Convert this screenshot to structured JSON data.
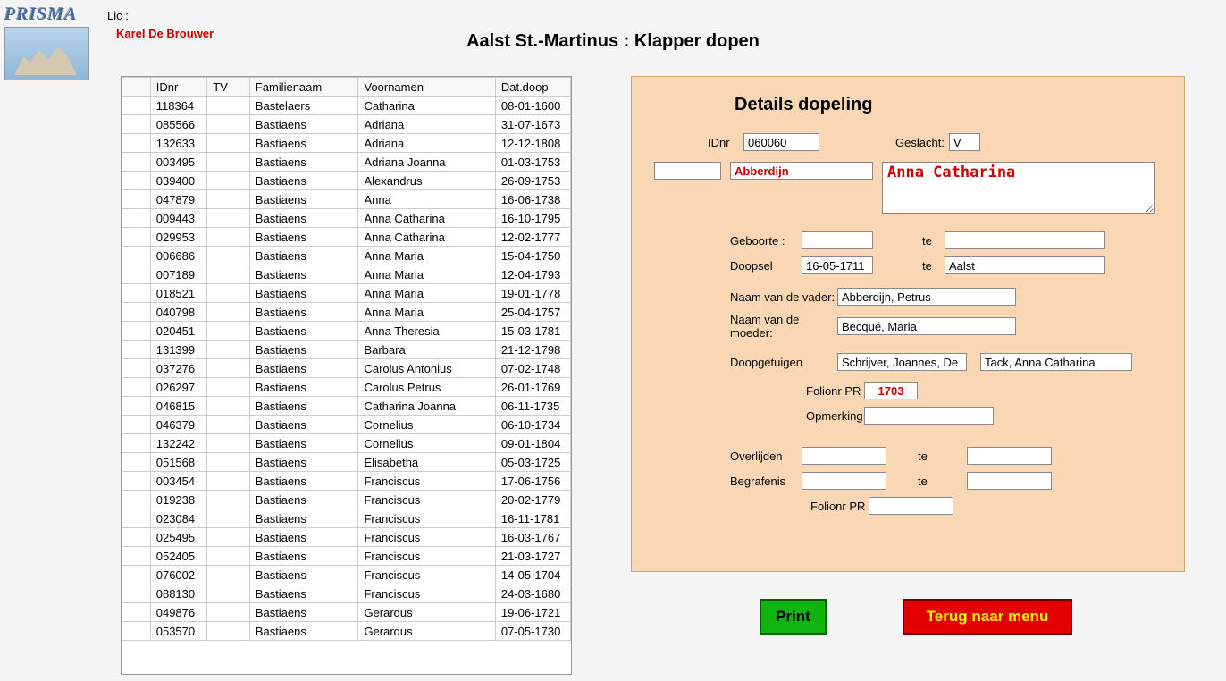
{
  "header": {
    "logo_text": "PRISMA",
    "lic_label": "Lic :",
    "lic_name": "Karel De Brouwer",
    "main_title": "Aalst St.-Martinus : Klapper dopen"
  },
  "table": {
    "columns": [
      "",
      "IDnr",
      "TV",
      "Familienaam",
      "Voornamen",
      "Dat.doop"
    ],
    "rows": [
      [
        "",
        "118364",
        "",
        "Bastelaers",
        "Catharina",
        "08-01-1600"
      ],
      [
        "",
        "085566",
        "",
        "Bastiaens",
        "Adriana",
        "31-07-1673"
      ],
      [
        "",
        "132633",
        "",
        "Bastiaens",
        "Adriana",
        "12-12-1808"
      ],
      [
        "",
        "003495",
        "",
        "Bastiaens",
        "Adriana Joanna",
        "01-03-1753"
      ],
      [
        "",
        "039400",
        "",
        "Bastiaens",
        "Alexandrus",
        "26-09-1753"
      ],
      [
        "",
        "047879",
        "",
        "Bastiaens",
        "Anna",
        "16-06-1738"
      ],
      [
        "",
        "009443",
        "",
        "Bastiaens",
        "Anna Catharina",
        "16-10-1795"
      ],
      [
        "",
        "029953",
        "",
        "Bastiaens",
        "Anna Catharina",
        "12-02-1777"
      ],
      [
        "",
        "006686",
        "",
        "Bastiaens",
        "Anna Maria",
        "15-04-1750"
      ],
      [
        "",
        "007189",
        "",
        "Bastiaens",
        "Anna Maria",
        "12-04-1793"
      ],
      [
        "",
        "018521",
        "",
        "Bastiaens",
        "Anna Maria",
        "19-01-1778"
      ],
      [
        "",
        "040798",
        "",
        "Bastiaens",
        "Anna Maria",
        "25-04-1757"
      ],
      [
        "",
        "020451",
        "",
        "Bastiaens",
        "Anna Theresia",
        "15-03-1781"
      ],
      [
        "",
        "131399",
        "",
        "Bastiaens",
        "Barbara",
        "21-12-1798"
      ],
      [
        "",
        "037276",
        "",
        "Bastiaens",
        "Carolus Antonius",
        "07-02-1748"
      ],
      [
        "",
        "026297",
        "",
        "Bastiaens",
        "Carolus Petrus",
        "26-01-1769"
      ],
      [
        "",
        "046815",
        "",
        "Bastiaens",
        "Catharina Joanna",
        "06-11-1735"
      ],
      [
        "",
        "046379",
        "",
        "Bastiaens",
        "Cornelius",
        "06-10-1734"
      ],
      [
        "",
        "132242",
        "",
        "Bastiaens",
        "Cornelius",
        "09-01-1804"
      ],
      [
        "",
        "051568",
        "",
        "Bastiaens",
        "Elisabetha",
        "05-03-1725"
      ],
      [
        "",
        "003454",
        "",
        "Bastiaens",
        "Franciscus",
        "17-06-1756"
      ],
      [
        "",
        "019238",
        "",
        "Bastiaens",
        "Franciscus",
        "20-02-1779"
      ],
      [
        "",
        "023084",
        "",
        "Bastiaens",
        "Franciscus",
        "16-11-1781"
      ],
      [
        "",
        "025495",
        "",
        "Bastiaens",
        "Franciscus",
        "16-03-1767"
      ],
      [
        "",
        "052405",
        "",
        "Bastiaens",
        "Franciscus",
        "21-03-1727"
      ],
      [
        "",
        "076002",
        "",
        "Bastiaens",
        "Franciscus",
        "14-05-1704"
      ],
      [
        "",
        "088130",
        "",
        "Bastiaens",
        "Franciscus",
        "24-03-1680"
      ],
      [
        "",
        "049876",
        "",
        "Bastiaens",
        "Gerardus",
        "19-06-1721"
      ],
      [
        "",
        "053570",
        "",
        "Bastiaens",
        "Gerardus",
        "07-05-1730"
      ]
    ]
  },
  "details": {
    "title": "Details dopeling",
    "idnr_label": "IDnr",
    "idnr_value": "060060",
    "geslacht_label": "Geslacht:",
    "geslacht_value": "V",
    "familienaam": "Abberdijn",
    "voornamen": "Anna Catharina",
    "geboorte_label": "Geboorte :",
    "geboorte_date": "",
    "geboorte_te_label": "te",
    "geboorte_place": "",
    "doopsel_label": "Doopsel",
    "doopsel_date": "16-05-1711",
    "doopsel_te_label": "te",
    "doopsel_place": "Aalst",
    "vader_label": "Naam van de vader:",
    "vader_value": "Abberdijn, Petrus",
    "moeder_label": "Naam van de moeder:",
    "moeder_value": "Becqué, Maria",
    "getuigen_label": "Doopgetuigen",
    "getuige1": "Schrijver, Joannes, De",
    "getuige2": "Tack, Anna Catharina",
    "folio_label": "Folionr PR",
    "folio_value": "1703",
    "opmerking_label": "Opmerking",
    "opmerking_value": "",
    "overlijden_label": "Overlijden",
    "overlijden_date": "",
    "overlijden_te_label": "te",
    "overlijden_place": "",
    "begrafenis_label": "Begrafenis",
    "begrafenis_date": "",
    "begrafenis_te_label": "te",
    "begrafenis_place": "",
    "folio2_label": "Folionr PR",
    "folio2_value": ""
  },
  "buttons": {
    "print": "Print",
    "menu": "Terug naar menu"
  }
}
